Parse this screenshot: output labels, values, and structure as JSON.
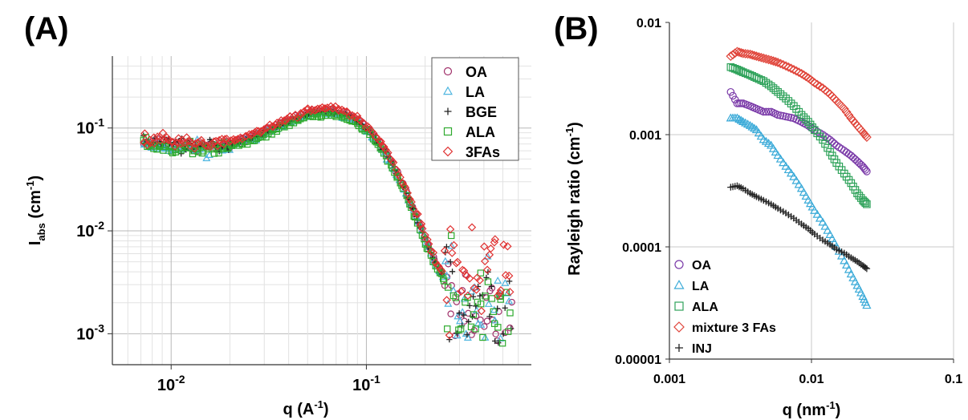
{
  "panels": {
    "a_label": "(A)",
    "b_label": "(B)"
  },
  "chart_data": [
    {
      "id": "A",
      "type": "scatter",
      "xscale": "log",
      "yscale": "log",
      "xlim": [
        0.005,
        0.7
      ],
      "ylim": [
        0.0005,
        0.5
      ],
      "xticks": [
        0.01,
        0.1
      ],
      "xtick_labels": [
        "10-2",
        "10-1"
      ],
      "yticks": [
        0.001,
        0.01,
        0.1
      ],
      "ytick_labels": [
        "10-3",
        "10-2",
        "10-1"
      ],
      "xlabel": "q (A-1)",
      "ylabel": "Iabs (cm-1)",
      "grid": true,
      "minor_grid": true,
      "legend_position": "top-right",
      "series": [
        {
          "name": "OA",
          "marker": "circle",
          "color": "#a0306a"
        },
        {
          "name": "LA",
          "marker": "triangle",
          "color": "#4fb6e0"
        },
        {
          "name": "BGE",
          "marker": "plus",
          "color": "#222222"
        },
        {
          "name": "ALA",
          "marker": "square",
          "color": "#2eaa2e"
        },
        {
          "name": "3FAs",
          "marker": "diamond",
          "color": "#e03030"
        }
      ],
      "curve": {
        "x": [
          0.0072,
          0.008,
          0.009,
          0.01,
          0.012,
          0.014,
          0.017,
          0.02,
          0.025,
          0.03,
          0.035,
          0.04,
          0.045,
          0.05,
          0.055,
          0.06,
          0.065,
          0.07,
          0.075,
          0.08,
          0.09,
          0.1,
          0.11,
          0.12,
          0.13,
          0.14,
          0.15,
          0.16,
          0.17,
          0.18,
          0.19,
          0.2,
          0.21,
          0.22,
          0.23,
          0.24,
          0.25,
          0.27,
          0.29,
          0.31,
          0.35,
          0.4,
          0.45,
          0.5,
          0.55
        ],
        "y": [
          0.075,
          0.073,
          0.071,
          0.07,
          0.068,
          0.067,
          0.068,
          0.071,
          0.08,
          0.092,
          0.105,
          0.118,
          0.13,
          0.14,
          0.146,
          0.148,
          0.148,
          0.145,
          0.14,
          0.133,
          0.118,
          0.1,
          0.082,
          0.066,
          0.052,
          0.04,
          0.031,
          0.024,
          0.018,
          0.014,
          0.011,
          0.0085,
          0.0068,
          0.0055,
          0.0046,
          0.004,
          0.0036,
          0.0034,
          0.0034,
          0.0035,
          0.0036,
          0.0037,
          0.0037,
          0.0037,
          0.0036
        ]
      }
    },
    {
      "id": "B",
      "type": "scatter",
      "xscale": "log",
      "yscale": "log",
      "xlim": [
        0.001,
        0.1
      ],
      "ylim": [
        1e-05,
        0.01
      ],
      "xticks": [
        0.001,
        0.01,
        0.1
      ],
      "xtick_labels": [
        "0.001",
        "0.01",
        "0.1"
      ],
      "yticks": [
        1e-05,
        0.0001,
        0.001,
        0.01
      ],
      "ytick_labels": [
        "0.00001",
        "0.0001",
        "0.001",
        "0.01"
      ],
      "xlabel": "q (nm-1)",
      "ylabel": "Rayleigh ratio (cm-1)",
      "grid": true,
      "legend_position": "bottom-left",
      "series": [
        {
          "name": "OA",
          "marker": "circle",
          "color": "#7a3aa8",
          "x": [
            0.0027,
            0.003,
            0.0033,
            0.0037,
            0.0041,
            0.0046,
            0.0052,
            0.0058,
            0.0066,
            0.0075,
            0.0085,
            0.0095,
            0.0105,
            0.012,
            0.0135,
            0.015,
            0.017,
            0.019,
            0.021,
            0.023,
            0.0245
          ],
          "y": [
            0.0024,
            0.0019,
            0.0019,
            0.0018,
            0.0017,
            0.0016,
            0.0016,
            0.0015,
            0.00145,
            0.0014,
            0.0013,
            0.0012,
            0.0011,
            0.001,
            0.0009,
            0.0008,
            0.00072,
            0.00065,
            0.00058,
            0.00052,
            0.00047
          ]
        },
        {
          "name": "LA",
          "marker": "triangle",
          "color": "#3aaad8",
          "x": [
            0.0027,
            0.003,
            0.0033,
            0.0037,
            0.0041,
            0.0046,
            0.0052,
            0.0058,
            0.0066,
            0.0075,
            0.0085,
            0.0095,
            0.0105,
            0.012,
            0.0135,
            0.015,
            0.017,
            0.019,
            0.021,
            0.023,
            0.0245
          ],
          "y": [
            0.0014,
            0.0014,
            0.0013,
            0.0012,
            0.0011,
            0.0009,
            0.0008,
            0.00065,
            0.00052,
            0.00042,
            0.00033,
            0.00026,
            0.00021,
            0.000165,
            0.000128,
            0.0001,
            7.5e-05,
            5.7e-05,
            4.5e-05,
            3.6e-05,
            3e-05
          ]
        },
        {
          "name": "ALA",
          "marker": "square",
          "color": "#2ea25a",
          "x": [
            0.0027,
            0.003,
            0.0033,
            0.0037,
            0.0041,
            0.0046,
            0.0052,
            0.0058,
            0.0066,
            0.0075,
            0.0085,
            0.0095,
            0.0105,
            0.012,
            0.0135,
            0.015,
            0.017,
            0.019,
            0.021,
            0.023,
            0.0245
          ],
          "y": [
            0.004,
            0.0038,
            0.0036,
            0.0034,
            0.0032,
            0.003,
            0.0027,
            0.0024,
            0.0021,
            0.0018,
            0.0015,
            0.0013,
            0.0011,
            0.0009,
            0.0007,
            0.00056,
            0.00045,
            0.00037,
            0.0003,
            0.00026,
            0.00024
          ]
        },
        {
          "name": "mixture 3 FAs",
          "marker": "diamond",
          "color": "#e0443a",
          "x": [
            0.0027,
            0.003,
            0.0033,
            0.0037,
            0.0041,
            0.0046,
            0.0052,
            0.0058,
            0.0066,
            0.0075,
            0.0085,
            0.0095,
            0.0105,
            0.012,
            0.0135,
            0.015,
            0.017,
            0.019,
            0.021,
            0.023,
            0.0245
          ],
          "y": [
            0.005,
            0.0055,
            0.0053,
            0.0052,
            0.005,
            0.0048,
            0.0046,
            0.0044,
            0.0041,
            0.0038,
            0.0035,
            0.0032,
            0.0029,
            0.0026,
            0.0023,
            0.002,
            0.0017,
            0.0014,
            0.0012,
            0.00105,
            0.00095
          ]
        },
        {
          "name": "INJ",
          "marker": "plus",
          "color": "#222222",
          "x": [
            0.0027,
            0.003,
            0.0033,
            0.0037,
            0.0041,
            0.0046,
            0.0052,
            0.0058,
            0.0066,
            0.0075,
            0.0085,
            0.0095,
            0.0105,
            0.012,
            0.0135,
            0.015,
            0.017,
            0.019,
            0.021,
            0.023,
            0.0245
          ],
          "y": [
            0.00034,
            0.00035,
            0.00033,
            0.0003,
            0.00028,
            0.00026,
            0.00024,
            0.00022,
            0.0002,
            0.00018,
            0.00016,
            0.000145,
            0.00013,
            0.000115,
            0.000105,
            9.5e-05,
            8.8e-05,
            8e-05,
            7.4e-05,
            6.8e-05,
            6.4e-05
          ]
        }
      ]
    }
  ]
}
